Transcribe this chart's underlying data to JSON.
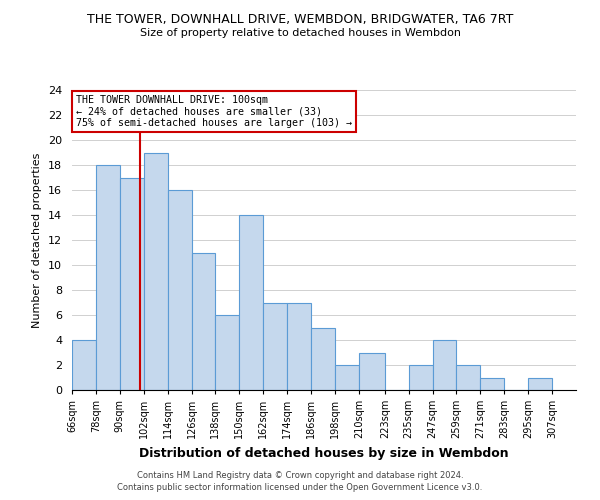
{
  "title1": "THE TOWER, DOWNHALL DRIVE, WEMBDON, BRIDGWATER, TA6 7RT",
  "title2": "Size of property relative to detached houses in Wembdon",
  "xlabel": "Distribution of detached houses by size in Wembdon",
  "ylabel": "Number of detached properties",
  "bar_edges": [
    66,
    78,
    90,
    102,
    114,
    126,
    138,
    150,
    162,
    174,
    186,
    198,
    210,
    223,
    235,
    247,
    259,
    271,
    283,
    295,
    307
  ],
  "bar_heights": [
    4,
    18,
    17,
    19,
    16,
    11,
    6,
    14,
    7,
    7,
    5,
    2,
    3,
    0,
    2,
    4,
    2,
    1,
    0,
    1
  ],
  "bar_color": "#c5d8ed",
  "bar_edge_color": "#5b9bd5",
  "vline_x": 100,
  "vline_color": "#cc0000",
  "annotation_title": "THE TOWER DOWNHALL DRIVE: 100sqm",
  "annotation_line1": "← 24% of detached houses are smaller (33)",
  "annotation_line2": "75% of semi-detached houses are larger (103) →",
  "annotation_box_edge": "#cc0000",
  "ylim": [
    0,
    24
  ],
  "yticks": [
    0,
    2,
    4,
    6,
    8,
    10,
    12,
    14,
    16,
    18,
    20,
    22,
    24
  ],
  "tick_labels": [
    "66sqm",
    "78sqm",
    "90sqm",
    "102sqm",
    "114sqm",
    "126sqm",
    "138sqm",
    "150sqm",
    "162sqm",
    "174sqm",
    "186sqm",
    "198sqm",
    "210sqm",
    "223sqm",
    "235sqm",
    "247sqm",
    "259sqm",
    "271sqm",
    "283sqm",
    "295sqm",
    "307sqm"
  ],
  "footer1": "Contains HM Land Registry data © Crown copyright and database right 2024.",
  "footer2": "Contains public sector information licensed under the Open Government Licence v3.0."
}
